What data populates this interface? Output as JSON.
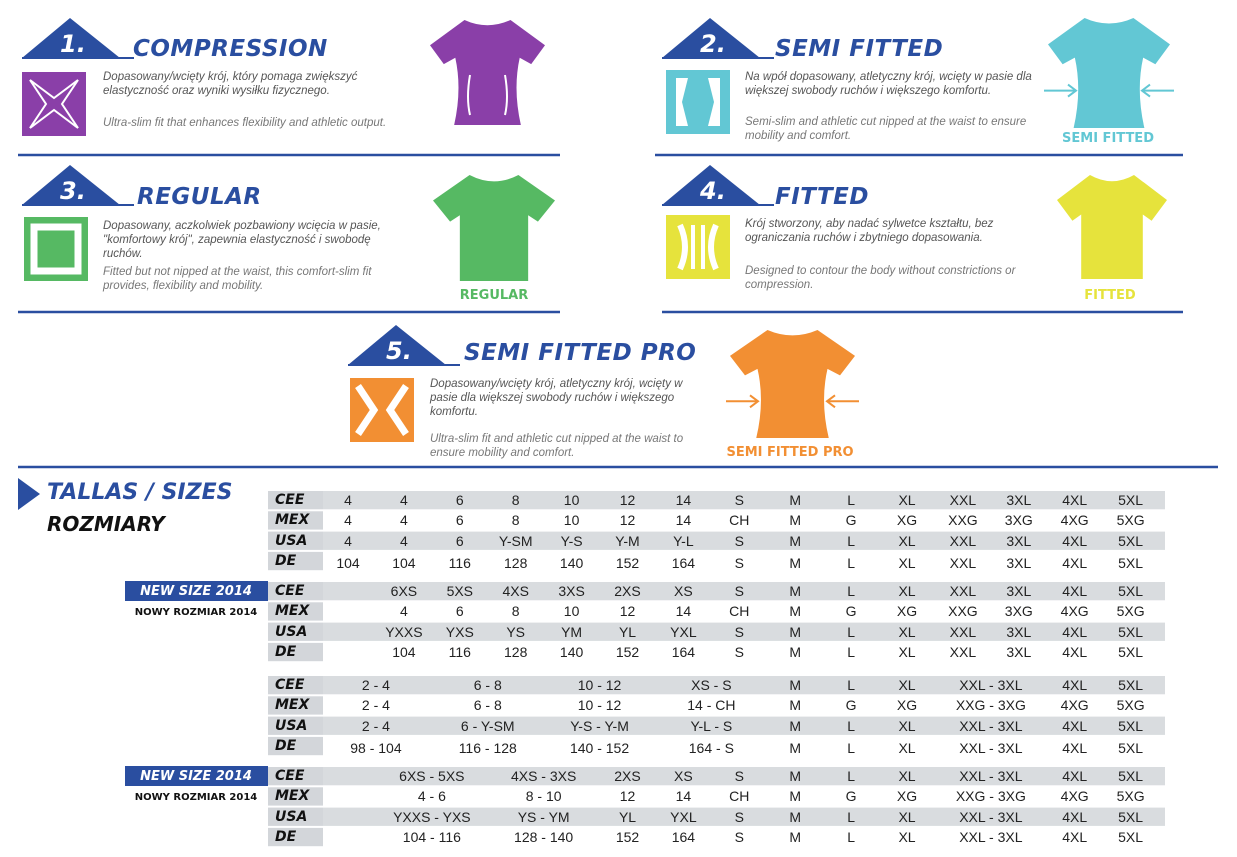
{
  "fits": [
    {
      "number": "1.",
      "title": "COMPRESSION",
      "text_pl": "Dopasowany/wcięty krój, który pomaga zwiększyć elastyczność oraz wyniki wysiłku fizycznego.",
      "text_en": "Ultra-slim fit that enhances flexibility and athletic output."
    },
    {
      "number": "2.",
      "title": "SEMI FITTED",
      "text_pl": "Na wpół dopasowany, atletyczny krój, wcięty w pasie dla większej swobody ruchów i większego komfortu.",
      "text_en": "Semi-slim and athletic cut nipped at the waist to ensure mobility and comfort.",
      "label": "SEMI FITTED"
    },
    {
      "number": "3.",
      "title": "REGULAR",
      "text_pl": "Dopasowany, aczkolwiek pozbawiony wcięcia w pasie, \"komfortowy krój\", zapewnia elastyczność i swobodę ruchów.",
      "text_en": "Fitted but not nipped at the waist, this comfort-slim fit provides, flexibility and mobility.",
      "label": "REGULAR"
    },
    {
      "number": "4.",
      "title": "FITTED",
      "text_pl": "Krój stworzony, aby nadać sylwetce kształtu, bez ograniczania ruchów i zbytniego dopasowania.",
      "text_en": "Designed to contour the body without constrictions or compression.",
      "label": "FITTED"
    },
    {
      "number": "5.",
      "title": "SEMI FITTED PRO",
      "text_pl": "Dopasowany/wcięty krój, atletyczny krój, wcięty w pasie dla większej swobody ruchów i większego komfortu.",
      "text_en": "Ultra-slim fit and athletic cut nipped at the waist to ensure mobility and comfort.",
      "label": "SEMI FITTED PRO"
    }
  ],
  "sizes": {
    "title": "TALLAS / SIZES",
    "subtitle": "ROZMIARY",
    "blocks": [
      {
        "rows": [
          {
            "label": "CEE",
            "cells": [
              "4",
              "4",
              "6",
              "8",
              "10",
              "12",
              "14",
              "S",
              "M",
              "L",
              "XL",
              "XXL",
              "3XL",
              "4XL",
              "5XL"
            ]
          },
          {
            "label": "MEX",
            "cells": [
              "4",
              "4",
              "6",
              "8",
              "10",
              "12",
              "14",
              "CH",
              "M",
              "G",
              "XG",
              "XXG",
              "3XG",
              "4XG",
              "5XG"
            ]
          },
          {
            "label": "USA",
            "cells": [
              "4",
              "4",
              "6",
              "Y-SM",
              "Y-S",
              "Y-M",
              "Y-L",
              "S",
              "M",
              "L",
              "XL",
              "XXL",
              "3XL",
              "4XL",
              "5XL"
            ]
          },
          {
            "label": "DE",
            "cells": [
              "104",
              "104",
              "116",
              "128",
              "140",
              "152",
              "164",
              "S",
              "M",
              "L",
              "XL",
              "XXL",
              "3XL",
              "4XL",
              "5XL"
            ]
          }
        ]
      },
      {
        "badge": "NEW SIZE 2014",
        "badge_sub": "NOWY ROZMIAR 2014",
        "rows": [
          {
            "label": "CEE",
            "cells": [
              "6XS",
              "5XS",
              "4XS",
              "3XS",
              "2XS",
              "XS",
              "S",
              "M",
              "L",
              "XL",
              "XXL",
              "3XL",
              "4XL",
              "5XL"
            ]
          },
          {
            "label": "MEX",
            "cells": [
              "4",
              "6",
              "8",
              "10",
              "12",
              "14",
              "CH",
              "M",
              "G",
              "XG",
              "XXG",
              "3XG",
              "4XG",
              "5XG"
            ]
          },
          {
            "label": "USA",
            "cells": [
              "YXXS",
              "YXS",
              "YS",
              "YM",
              "YL",
              "YXL",
              "S",
              "M",
              "L",
              "XL",
              "XXL",
              "3XL",
              "4XL",
              "5XL"
            ]
          },
          {
            "label": "DE",
            "cells": [
              "104",
              "116",
              "128",
              "140",
              "152",
              "164",
              "S",
              "M",
              "L",
              "XL",
              "XXL",
              "3XL",
              "4XL",
              "5XL"
            ]
          }
        ]
      },
      {
        "rows": [
          {
            "label": "CEE",
            "cells": [
              "2 - 4",
              "6 - 8",
              "10 - 12",
              "XS - S",
              "M",
              "L",
              "XL",
              "XXL - 3XL",
              "4XL",
              "5XL"
            ]
          },
          {
            "label": "MEX",
            "cells": [
              "2 - 4",
              "6 - 8",
              "10 - 12",
              "14 - CH",
              "M",
              "G",
              "XG",
              "XXG - 3XG",
              "4XG",
              "5XG"
            ]
          },
          {
            "label": "USA",
            "cells": [
              "2 - 4",
              "6 - Y-SM",
              "Y-S - Y-M",
              "Y-L - S",
              "M",
              "L",
              "XL",
              "XXL - 3XL",
              "4XL",
              "5XL"
            ]
          },
          {
            "label": "DE",
            "cells": [
              "98 - 104",
              "116 - 128",
              "140 - 152",
              "164 - S",
              "M",
              "L",
              "XL",
              "XXL - 3XL",
              "4XL",
              "5XL"
            ]
          }
        ]
      },
      {
        "badge": "NEW SIZE 2014",
        "badge_sub": "NOWY ROZMIAR 2014",
        "rows": [
          {
            "label": "CEE",
            "cells": [
              "6XS - 5XS",
              "4XS - 3XS",
              "2XS",
              "XS",
              "S",
              "M",
              "L",
              "XL",
              "XXL - 3XL",
              "4XL",
              "5XL"
            ]
          },
          {
            "label": "MEX",
            "cells": [
              "4 - 6",
              "8 - 10",
              "12",
              "14",
              "CH",
              "M",
              "G",
              "XG",
              "XXG - 3XG",
              "4XG",
              "5XG"
            ]
          },
          {
            "label": "USA",
            "cells": [
              "YXXS - YXS",
              "YS - YM",
              "YL",
              "YXL",
              "S",
              "M",
              "L",
              "XL",
              "XXL - 3XL",
              "4XL",
              "5XL"
            ]
          },
          {
            "label": "DE",
            "cells": [
              "104 - 116",
              "128 - 140",
              "152",
              "164",
              "S",
              "M",
              "L",
              "XL",
              "XXL - 3XL",
              "4XL",
              "5XL"
            ]
          }
        ]
      }
    ]
  }
}
